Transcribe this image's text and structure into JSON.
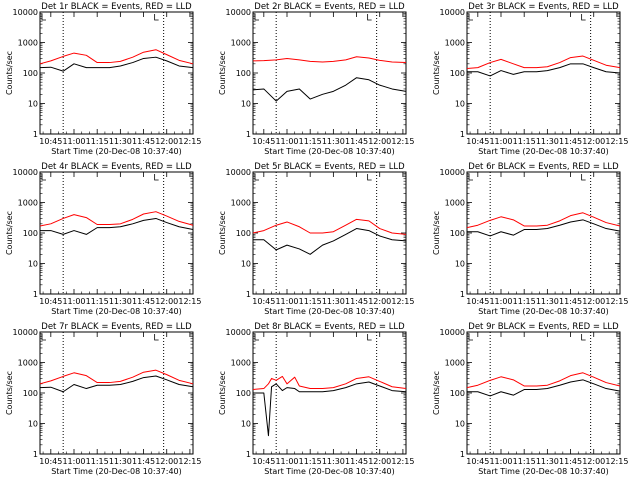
{
  "figure": {
    "xlabel": "Start Time (20-Dec-08 10:37:40)",
    "ylabel": "Counts/sec",
    "x_ticks": [
      "10:45",
      "11:00",
      "11:15",
      "11:30",
      "11:45",
      "12:00",
      "12:15"
    ],
    "y_ticks": [
      "1",
      "10",
      "100",
      "1000",
      "10000"
    ],
    "flag_label": "L",
    "colors": {
      "events": "#000000",
      "lld": "#ff0000",
      "frame": "#000000"
    }
  },
  "chart_data": [
    {
      "type": "line",
      "title": "Det 1r BLACK = Events, RED = LLD",
      "xlabel": "Start Time (20-Dec-08 10:37:40)",
      "ylabel": "Counts/sec",
      "x_unit": "clock time",
      "xlim": [
        "10:38",
        "12:17"
      ],
      "ylim": [
        1,
        10000
      ],
      "y_scale": "log",
      "x": [
        "10:38",
        "10:45",
        "10:53",
        "11:00",
        "11:08",
        "11:15",
        "11:23",
        "11:30",
        "11:38",
        "11:45",
        "11:53",
        "12:00",
        "12:08",
        "12:17"
      ],
      "dotted_vlines": [
        "10:53",
        "11:58"
      ],
      "series": [
        {
          "name": "Events",
          "color": "#000000",
          "values": [
            150,
            155,
            115,
            200,
            150,
            150,
            150,
            170,
            220,
            300,
            330,
            250,
            170,
            150
          ]
        },
        {
          "name": "LLD",
          "color": "#ff0000",
          "values": [
            200,
            250,
            350,
            450,
            380,
            220,
            220,
            240,
            330,
            480,
            580,
            400,
            260,
            200
          ]
        }
      ]
    },
    {
      "type": "line",
      "title": "Det 2r BLACK = Events, RED = LLD",
      "xlabel": "Start Time (20-Dec-08 10:37:40)",
      "ylabel": "Counts/sec",
      "x_unit": "clock time",
      "xlim": [
        "10:38",
        "12:17"
      ],
      "ylim": [
        1,
        10000
      ],
      "y_scale": "log",
      "x": [
        "10:38",
        "10:45",
        "10:53",
        "11:00",
        "11:08",
        "11:15",
        "11:23",
        "11:30",
        "11:38",
        "11:45",
        "11:53",
        "12:00",
        "12:08",
        "12:17"
      ],
      "dotted_vlines": [
        "10:53",
        "11:58"
      ],
      "series": [
        {
          "name": "Events",
          "color": "#000000",
          "values": [
            28,
            30,
            12,
            25,
            30,
            14,
            20,
            25,
            40,
            70,
            60,
            40,
            30,
            25
          ]
        },
        {
          "name": "LLD",
          "color": "#ff0000",
          "values": [
            250,
            255,
            270,
            300,
            270,
            240,
            230,
            240,
            270,
            340,
            310,
            260,
            230,
            220
          ]
        }
      ]
    },
    {
      "type": "line",
      "title": "Det 3r BLACK = Events, RED = LLD",
      "xlabel": "Start Time (20-Dec-08 10:37:40)",
      "ylabel": "Counts/sec",
      "x_unit": "clock time",
      "xlim": [
        "10:38",
        "12:17"
      ],
      "ylim": [
        1,
        10000
      ],
      "y_scale": "log",
      "x": [
        "10:38",
        "10:45",
        "10:53",
        "11:00",
        "11:08",
        "11:15",
        "11:23",
        "11:30",
        "11:38",
        "11:45",
        "11:53",
        "12:00",
        "12:08",
        "12:17"
      ],
      "dotted_vlines": [
        "10:53",
        "11:58"
      ],
      "series": [
        {
          "name": "Events",
          "color": "#000000",
          "values": [
            110,
            110,
            80,
            120,
            90,
            110,
            110,
            120,
            150,
            200,
            200,
            150,
            110,
            100
          ]
        },
        {
          "name": "LLD",
          "color": "#ff0000",
          "values": [
            140,
            150,
            220,
            280,
            200,
            150,
            150,
            160,
            220,
            320,
            360,
            260,
            180,
            150
          ]
        }
      ]
    },
    {
      "type": "line",
      "title": "Det 4r BLACK = Events, RED = LLD",
      "xlabel": "Start Time (20-Dec-08 10:37:40)",
      "ylabel": "Counts/sec",
      "x_unit": "clock time",
      "xlim": [
        "10:38",
        "12:17"
      ],
      "ylim": [
        1,
        10000
      ],
      "y_scale": "log",
      "x": [
        "10:38",
        "10:45",
        "10:53",
        "11:00",
        "11:08",
        "11:15",
        "11:23",
        "11:30",
        "11:38",
        "11:45",
        "11:53",
        "12:00",
        "12:08",
        "12:17"
      ],
      "dotted_vlines": [
        "10:53",
        "11:58"
      ],
      "series": [
        {
          "name": "Events",
          "color": "#000000",
          "values": [
            120,
            120,
            90,
            120,
            90,
            150,
            150,
            160,
            200,
            260,
            300,
            220,
            160,
            130
          ]
        },
        {
          "name": "LLD",
          "color": "#ff0000",
          "values": [
            170,
            200,
            300,
            400,
            320,
            190,
            190,
            200,
            280,
            420,
            500,
            360,
            240,
            180
          ]
        }
      ]
    },
    {
      "type": "line",
      "title": "Det 5r BLACK = Events, RED = LLD",
      "xlabel": "Start Time (20-Dec-08 10:37:40)",
      "ylabel": "Counts/sec",
      "x_unit": "clock time",
      "xlim": [
        "10:38",
        "12:17"
      ],
      "ylim": [
        1,
        10000
      ],
      "y_scale": "log",
      "x": [
        "10:38",
        "10:45",
        "10:53",
        "11:00",
        "11:08",
        "11:15",
        "11:23",
        "11:30",
        "11:38",
        "11:45",
        "11:53",
        "12:00",
        "12:08",
        "12:17"
      ],
      "dotted_vlines": [
        "10:53",
        "11:58"
      ],
      "series": [
        {
          "name": "Events",
          "color": "#000000",
          "values": [
            60,
            60,
            28,
            40,
            30,
            20,
            40,
            55,
            90,
            140,
            120,
            80,
            60,
            55
          ]
        },
        {
          "name": "LLD",
          "color": "#ff0000",
          "values": [
            100,
            120,
            180,
            230,
            160,
            100,
            100,
            110,
            180,
            280,
            250,
            140,
            100,
            90
          ]
        }
      ]
    },
    {
      "type": "line",
      "title": "Det 6r BLACK = Events, RED = LLD",
      "xlabel": "Start Time (20-Dec-08 10:37:40)",
      "ylabel": "Counts/sec",
      "x_unit": "clock time",
      "xlim": [
        "10:38",
        "12:17"
      ],
      "ylim": [
        1,
        10000
      ],
      "y_scale": "log",
      "x": [
        "10:38",
        "10:45",
        "10:53",
        "11:00",
        "11:08",
        "11:15",
        "11:23",
        "11:30",
        "11:38",
        "11:45",
        "11:53",
        "12:00",
        "12:08",
        "12:17"
      ],
      "dotted_vlines": [
        "10:53",
        "11:58"
      ],
      "series": [
        {
          "name": "Events",
          "color": "#000000",
          "values": [
            110,
            110,
            80,
            110,
            85,
            130,
            130,
            140,
            180,
            230,
            270,
            200,
            140,
            115
          ]
        },
        {
          "name": "LLD",
          "color": "#ff0000",
          "values": [
            150,
            180,
            260,
            340,
            270,
            170,
            170,
            180,
            250,
            370,
            460,
            330,
            220,
            170
          ]
        }
      ]
    },
    {
      "type": "line",
      "title": "Det 7r BLACK = Events, RED = LLD",
      "xlabel": "Start Time (20-Dec-08 10:37:40)",
      "ylabel": "Counts/sec",
      "x_unit": "clock time",
      "xlim": [
        "10:38",
        "12:17"
      ],
      "ylim": [
        1,
        10000
      ],
      "y_scale": "log",
      "x": [
        "10:38",
        "10:45",
        "10:53",
        "11:00",
        "11:08",
        "11:15",
        "11:23",
        "11:30",
        "11:38",
        "11:45",
        "11:53",
        "12:00",
        "12:08",
        "12:17"
      ],
      "dotted_vlines": [
        "10:53",
        "11:58"
      ],
      "series": [
        {
          "name": "Events",
          "color": "#000000",
          "values": [
            150,
            155,
            110,
            190,
            140,
            180,
            180,
            190,
            240,
            320,
            360,
            270,
            190,
            160
          ]
        },
        {
          "name": "LLD",
          "color": "#ff0000",
          "values": [
            200,
            250,
            350,
            460,
            370,
            220,
            220,
            240,
            330,
            480,
            560,
            400,
            260,
            200
          ]
        }
      ]
    },
    {
      "type": "line",
      "title": "Det 8r BLACK = Events, RED = LLD",
      "xlabel": "Start Time (20-Dec-08 10:37:40)",
      "ylabel": "Counts/sec",
      "x_unit": "clock time",
      "xlim": [
        "10:38",
        "12:17"
      ],
      "ylim": [
        1,
        10000
      ],
      "y_scale": "log",
      "x": [
        "10:38",
        "10:45",
        "10:48",
        "10:50",
        "10:53",
        "10:57",
        "11:00",
        "11:05",
        "11:08",
        "11:15",
        "11:23",
        "11:30",
        "11:38",
        "11:45",
        "11:53",
        "12:00",
        "12:08",
        "12:17"
      ],
      "dotted_vlines": [
        "10:53",
        "11:58"
      ],
      "series": [
        {
          "name": "Events",
          "color": "#000000",
          "values": [
            100,
            100,
            4,
            160,
            200,
            120,
            150,
            140,
            110,
            110,
            110,
            120,
            150,
            200,
            230,
            170,
            120,
            110
          ]
        },
        {
          "name": "LLD",
          "color": "#ff0000",
          "values": [
            130,
            140,
            200,
            300,
            260,
            350,
            200,
            330,
            170,
            140,
            140,
            150,
            200,
            300,
            340,
            240,
            160,
            140
          ]
        }
      ]
    },
    {
      "type": "line",
      "title": "Det 9r BLACK = Events, RED = LLD",
      "xlabel": "Start Time (20-Dec-08 10:37:40)",
      "ylabel": "Counts/sec",
      "x_unit": "clock time",
      "xlim": [
        "10:38",
        "12:17"
      ],
      "ylim": [
        1,
        10000
      ],
      "y_scale": "log",
      "x": [
        "10:38",
        "10:45",
        "10:53",
        "11:00",
        "11:08",
        "11:15",
        "11:23",
        "11:30",
        "11:38",
        "11:45",
        "11:53",
        "12:00",
        "12:08",
        "12:17"
      ],
      "dotted_vlines": [
        "10:53",
        "11:58"
      ],
      "series": [
        {
          "name": "Events",
          "color": "#000000",
          "values": [
            110,
            110,
            80,
            110,
            85,
            130,
            130,
            140,
            180,
            230,
            270,
            200,
            140,
            115
          ]
        },
        {
          "name": "LLD",
          "color": "#ff0000",
          "values": [
            150,
            180,
            260,
            340,
            270,
            170,
            170,
            180,
            250,
            370,
            460,
            330,
            220,
            170
          ]
        }
      ]
    }
  ]
}
